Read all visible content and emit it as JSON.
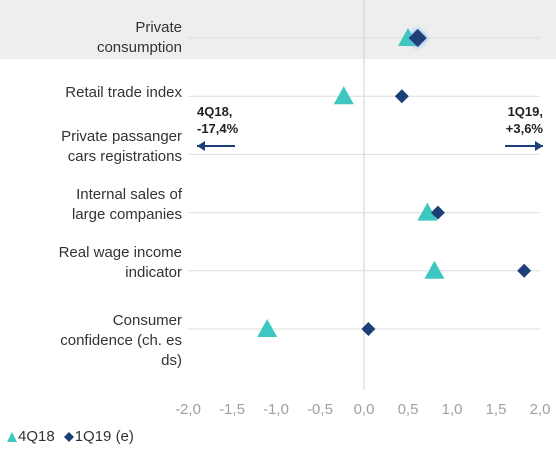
{
  "chart_data": {
    "type": "dot",
    "categories": [
      "Private\nconsumption",
      "Retail trade index",
      "Private passanger\ncars registrations",
      "Internal sales of\nlarge companies",
      "Real wage income\nindicator",
      "Consumer\nconfidence (ch. es\nds)"
    ],
    "series": [
      {
        "name": "4Q18",
        "color": "#3ec7c0",
        "marker": "triangle",
        "values": [
          0.5,
          -0.23,
          null,
          0.72,
          0.8,
          -1.1
        ]
      },
      {
        "name": "1Q19 (e)",
        "color": "#1c3f78",
        "marker": "diamond",
        "values": [
          0.61,
          0.43,
          null,
          0.84,
          1.82,
          0.05
        ]
      }
    ],
    "annotations": [
      "4Q18,\n-17,4%",
      "1Q19,\n+3,6%"
    ],
    "xlim": [
      -2,
      2
    ],
    "xticks": [
      {
        "value": -2,
        "label": "-2,0"
      },
      {
        "value": -1.5,
        "label": "-1,5"
      },
      {
        "value": -1,
        "label": "-1,0"
      },
      {
        "value": -0.5,
        "label": "-0,5"
      },
      {
        "value": 0,
        "label": "0,0"
      },
      {
        "value": 0.5,
        "label": "0,5"
      },
      {
        "value": 1,
        "label": "1,0"
      },
      {
        "value": 1.5,
        "label": "1,5"
      },
      {
        "value": 2,
        "label": "2,0"
      }
    ],
    "grid": true
  }
}
